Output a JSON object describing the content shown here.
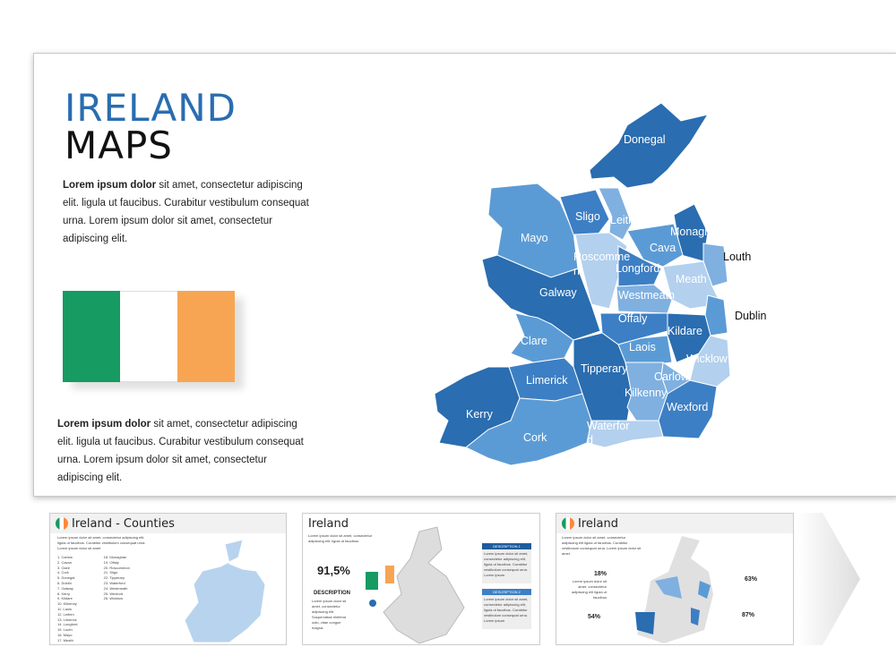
{
  "main": {
    "title1": "IRELAND",
    "title2": "MAPS",
    "para1_bold": "Lorem ipsum dolor",
    "para1_rest": " sit amet, consectetur adipiscing elit. ligula ut faucibus. Curabitur vestibulum consequat urna. Lorem ipsum dolor sit amet, consectetur adipiscing elit.",
    "para2_bold": "Lorem ipsum dolor",
    "para2_rest": " sit amet, consectetur adipiscing elit. ligula ut faucibus. Curabitur vestibulum consequat urna. Lorem ipsum dolor sit amet, consectetur adipiscing elit.",
    "flag_colors": [
      "#169b62",
      "#ffffff",
      "#f7a552"
    ],
    "counties": [
      "Donegal",
      "Sligo",
      "Leitrim",
      "Mayo",
      "Monaghan",
      "Cava",
      "Roscomme",
      "n",
      "Longford",
      "Louth",
      "Meath",
      "Galway",
      "Westmeath",
      "Offaly",
      "Dublin",
      "Kildare",
      "Clare",
      "Laois",
      "Wicklow",
      "Tipperary",
      "Carlow",
      "Limerick",
      "Kilkenny",
      "Wexford",
      "Kerry",
      "Waterfor",
      "d",
      "Cork"
    ]
  },
  "thumb1": {
    "title": "Ireland - Counties",
    "intro": "Lorem ipsum dolor sit amet, consectetur adipiscing elit. ligula ut faucibus. Curabitur vestibulum consequat urna. Lorem ipsum dolor sit amet",
    "list": [
      "1. Carlow",
      "2. Cavan",
      "3. Clare",
      "4. Cork",
      "5. Donegal",
      "6. Dublin",
      "7. Galway",
      "8. Kerry",
      "9. Kildare",
      "10. Kilkenny",
      "11. Laois",
      "12. Leitrim",
      "13. Limerick",
      "14. Longford",
      "15. Louth",
      "16. Mayo",
      "17. Meath",
      "18. Monaghan",
      "19. Offaly",
      "20. Roscommon",
      "21. Sligo",
      "22. Tipperary",
      "23. Waterford",
      "24. Westmeath",
      "25. Wexford",
      "26. Wicklow"
    ]
  },
  "thumb2": {
    "title": "Ireland",
    "intro": "Lorem ipsum dolor sit amet, consectetur adipiscing elit. ligula ut faucibus.",
    "stat": "91,5%",
    "desc_title": "DESCRIPTION",
    "desc_text": "Lorem ipsum dolor sit amet, consectetur adipiscing elit. Suspendisse eleifend odio, vitae congue magna.",
    "box1": "DESCRIPTION 1",
    "box2": "DESCRIPTION 2",
    "box_text": "Lorem ipsum dolor sit amet, consectetur adipiscing elit, ligula ut faucibus. Curabitur vestibulum consequat urna. Lorem ipsum"
  },
  "thumb3": {
    "title": "Ireland",
    "intro": "Lorem ipsum dolor sit amet, consectetur adipiscing elit ligula ut faucibus. Curabitur vestibulum consequat urna. Lorem ipsum dolor sit amet",
    "stats": [
      "18%",
      "63%",
      "54%",
      "87%"
    ],
    "stat_text": "Lorem ipsum dolor sit amet, consectetur adipiscing elit ligula ut faucibus"
  }
}
